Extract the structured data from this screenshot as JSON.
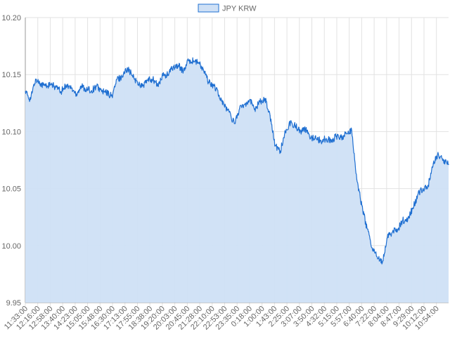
{
  "chart_data": {
    "type": "area",
    "title": "",
    "xlabel": "",
    "ylabel": "",
    "ylim": [
      9.95,
      10.2
    ],
    "yticks": [
      9.95,
      10.0,
      10.05,
      10.1,
      10.15,
      10.2
    ],
    "ytick_labels": [
      "9.95",
      "10.00",
      "10.05",
      "10.10",
      "10.15",
      "10.20"
    ],
    "grid": true,
    "legend_position": "top-center",
    "colors": {
      "line": "#1f6fd1",
      "fill": "#cfe0f5",
      "grid": "#e2e2e2",
      "axis": "#999999"
    },
    "x_tick_labels": [
      "11:33:00",
      "12:16:00",
      "12:58:00",
      "13:40:00",
      "14:23:00",
      "15:05:00",
      "15:48:00",
      "16:30:00",
      "17:13:00",
      "17:55:00",
      "18:38:00",
      "19:20:00",
      "20:03:00",
      "20:45:00",
      "21:28:00",
      "22:10:00",
      "22:53:00",
      "23:35:00",
      "0:18:00",
      "1:00:00",
      "1:43:00",
      "2:25:00",
      "3:07:00",
      "3:50:00",
      "4:32:00",
      "5:15:00",
      "5:57:00",
      "6:40:00",
      "7:22:00",
      "8:04:00",
      "8:47:00",
      "9:29:00",
      "10:12:00",
      "10:54:00"
    ],
    "series": [
      {
        "name": "JPY KRW",
        "values": [
          10.135,
          10.128,
          10.146,
          10.142,
          10.14,
          10.141,
          10.139,
          10.135,
          10.141,
          10.138,
          10.133,
          10.14,
          10.137,
          10.136,
          10.14,
          10.135,
          10.134,
          10.131,
          10.146,
          10.148,
          10.156,
          10.149,
          10.143,
          10.14,
          10.145,
          10.146,
          10.14,
          10.149,
          10.15,
          10.157,
          10.158,
          10.153,
          10.162,
          10.162,
          10.16,
          10.153,
          10.143,
          10.14,
          10.132,
          10.123,
          10.117,
          10.107,
          10.12,
          10.124,
          10.128,
          10.12,
          10.126,
          10.129,
          10.114,
          10.088,
          10.083,
          10.1,
          10.108,
          10.105,
          10.1,
          10.102,
          10.095,
          10.094,
          10.092,
          10.094,
          10.092,
          10.096,
          10.095,
          10.098,
          10.101,
          10.058,
          10.035,
          10.015,
          9.998,
          9.99,
          9.985,
          10.007,
          10.012,
          10.014,
          10.022,
          10.023,
          10.033,
          10.045,
          10.05,
          10.053,
          10.072,
          10.08,
          10.075,
          10.071
        ]
      }
    ]
  }
}
